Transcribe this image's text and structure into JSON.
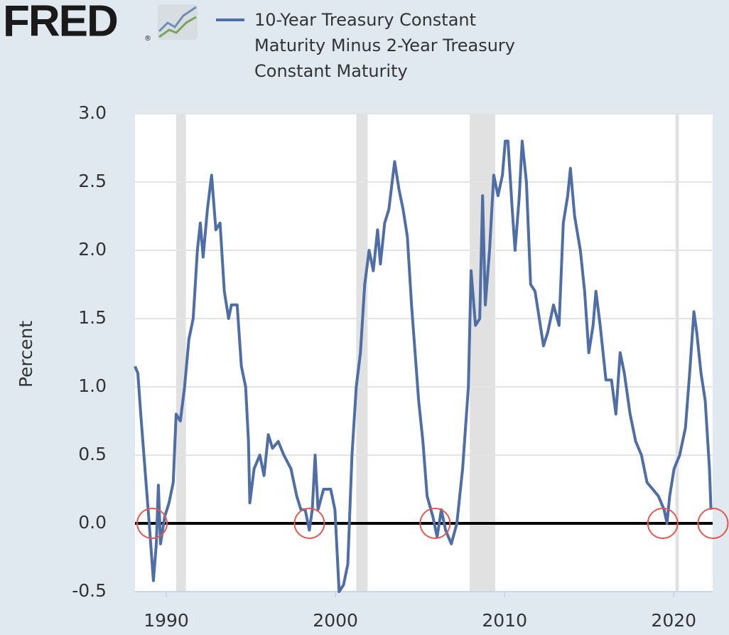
{
  "chart_data": {
    "type": "line",
    "logo": "FRED",
    "y_label": "Percent",
    "x": [
      1988.15,
      1988.32,
      1988.49,
      1988.74,
      1988.99,
      1989.24,
      1989.41,
      1989.53,
      1989.66,
      1989.91,
      1990.16,
      1990.41,
      1990.58,
      1990.83,
      1991.08,
      1991.34,
      1991.59,
      1991.84,
      1992.01,
      1992.18,
      1992.43,
      1992.68,
      1992.93,
      1993.18,
      1993.43,
      1993.68,
      1993.85,
      1994.19,
      1994.44,
      1994.69,
      1994.86,
      1994.94,
      1995.19,
      1995.53,
      1995.78,
      1996.03,
      1996.28,
      1996.62,
      1996.95,
      1997.37,
      1997.71,
      1997.96,
      1998.21,
      1998.46,
      1998.63,
      1998.8,
      1998.97,
      1999.3,
      1999.72,
      1999.97,
      2000.22,
      2000.48,
      2000.73,
      2000.98,
      2001.23,
      2001.48,
      2001.73,
      2001.99,
      2002.24,
      2002.49,
      2002.66,
      2002.91,
      2003.16,
      2003.5,
      2003.75,
      2004.0,
      2004.25,
      2004.5,
      2004.92,
      2005.17,
      2005.42,
      2005.76,
      2006.01,
      2006.26,
      2006.51,
      2006.85,
      2007.18,
      2007.52,
      2007.86,
      2008.02,
      2008.28,
      2008.53,
      2008.7,
      2008.86,
      2009.11,
      2009.36,
      2009.61,
      2009.87,
      2010.04,
      2010.2,
      2010.45,
      2010.62,
      2010.87,
      2011.04,
      2011.29,
      2011.54,
      2011.8,
      2012.05,
      2012.3,
      2012.55,
      2012.89,
      2013.22,
      2013.47,
      2013.73,
      2013.89,
      2014.14,
      2014.48,
      2014.73,
      2014.98,
      2015.23,
      2015.4,
      2015.65,
      2015.99,
      2016.32,
      2016.58,
      2016.83,
      2017.08,
      2017.42,
      2017.75,
      2018.09,
      2018.42,
      2018.76,
      2019.09,
      2019.43,
      2019.6,
      2019.76,
      2020.02,
      2020.35,
      2020.69,
      2020.94,
      2021.19,
      2021.36,
      2021.61,
      2021.86,
      2022.11,
      2022.2
    ],
    "series": [
      {
        "name": "10-Year Treasury Constant Maturity Minus 2-Year Treasury Constant Maturity",
        "color": "#4e6ea5",
        "values": [
          1.15,
          1.1,
          0.8,
          0.4,
          0.0,
          -0.42,
          -0.15,
          0.28,
          -0.15,
          0.05,
          0.15,
          0.3,
          0.8,
          0.75,
          1.0,
          1.35,
          1.5,
          2.0,
          2.2,
          1.95,
          2.3,
          2.55,
          2.15,
          2.2,
          1.7,
          1.5,
          1.6,
          1.6,
          1.15,
          1.0,
          0.6,
          0.15,
          0.4,
          0.5,
          0.35,
          0.65,
          0.55,
          0.6,
          0.5,
          0.4,
          0.2,
          0.1,
          0.1,
          -0.05,
          0.1,
          0.5,
          0.1,
          0.25,
          0.25,
          0.1,
          -0.5,
          -0.45,
          -0.3,
          0.5,
          1.0,
          1.25,
          1.75,
          2.0,
          1.85,
          2.15,
          1.9,
          2.2,
          2.3,
          2.65,
          2.45,
          2.3,
          2.1,
          1.6,
          0.9,
          0.6,
          0.2,
          0.05,
          -0.1,
          0.1,
          -0.05,
          -0.15,
          0.0,
          0.4,
          1.0,
          1.85,
          1.45,
          1.5,
          2.4,
          1.6,
          2.0,
          2.55,
          2.4,
          2.55,
          2.8,
          2.8,
          2.3,
          2.0,
          2.4,
          2.8,
          2.5,
          1.75,
          1.7,
          1.5,
          1.3,
          1.4,
          1.6,
          1.45,
          2.2,
          2.4,
          2.6,
          2.25,
          2.0,
          1.7,
          1.25,
          1.45,
          1.7,
          1.45,
          1.05,
          1.05,
          0.8,
          1.25,
          1.1,
          0.8,
          0.6,
          0.5,
          0.3,
          0.25,
          0.2,
          0.1,
          0.0,
          0.2,
          0.4,
          0.5,
          0.7,
          1.1,
          1.55,
          1.4,
          1.1,
          0.9,
          0.4,
          0.1
        ]
      }
    ],
    "xlim": [
      1988.15,
      2022.3
    ],
    "xticks": [
      1990,
      2000,
      2010,
      2020
    ],
    "ylim": [
      -0.5,
      3.0
    ],
    "yticks": [
      {
        "value": -0.5,
        "label": "-0.5"
      },
      {
        "value": 0,
        "label": "0.0"
      },
      0.5,
      {
        "value": 1,
        "label": "1.0"
      },
      1.5,
      {
        "value": 2,
        "label": "2.0"
      },
      2.5,
      {
        "value": 3,
        "label": "3.0"
      }
    ],
    "grid": true,
    "reference_line": 0,
    "recessions": [
      [
        1990.58,
        1991.16
      ],
      [
        2001.23,
        2001.9
      ],
      [
        2007.94,
        2009.45
      ],
      [
        2020.1,
        2020.3
      ]
    ],
    "highlights": [
      {
        "x": 1989.16,
        "y": 0
      },
      {
        "x": 1998.46,
        "y": 0
      },
      {
        "x": 2005.89,
        "y": 0
      },
      {
        "x": 2019.35,
        "y": 0
      },
      {
        "x": 2022.32,
        "y": 0
      }
    ]
  }
}
